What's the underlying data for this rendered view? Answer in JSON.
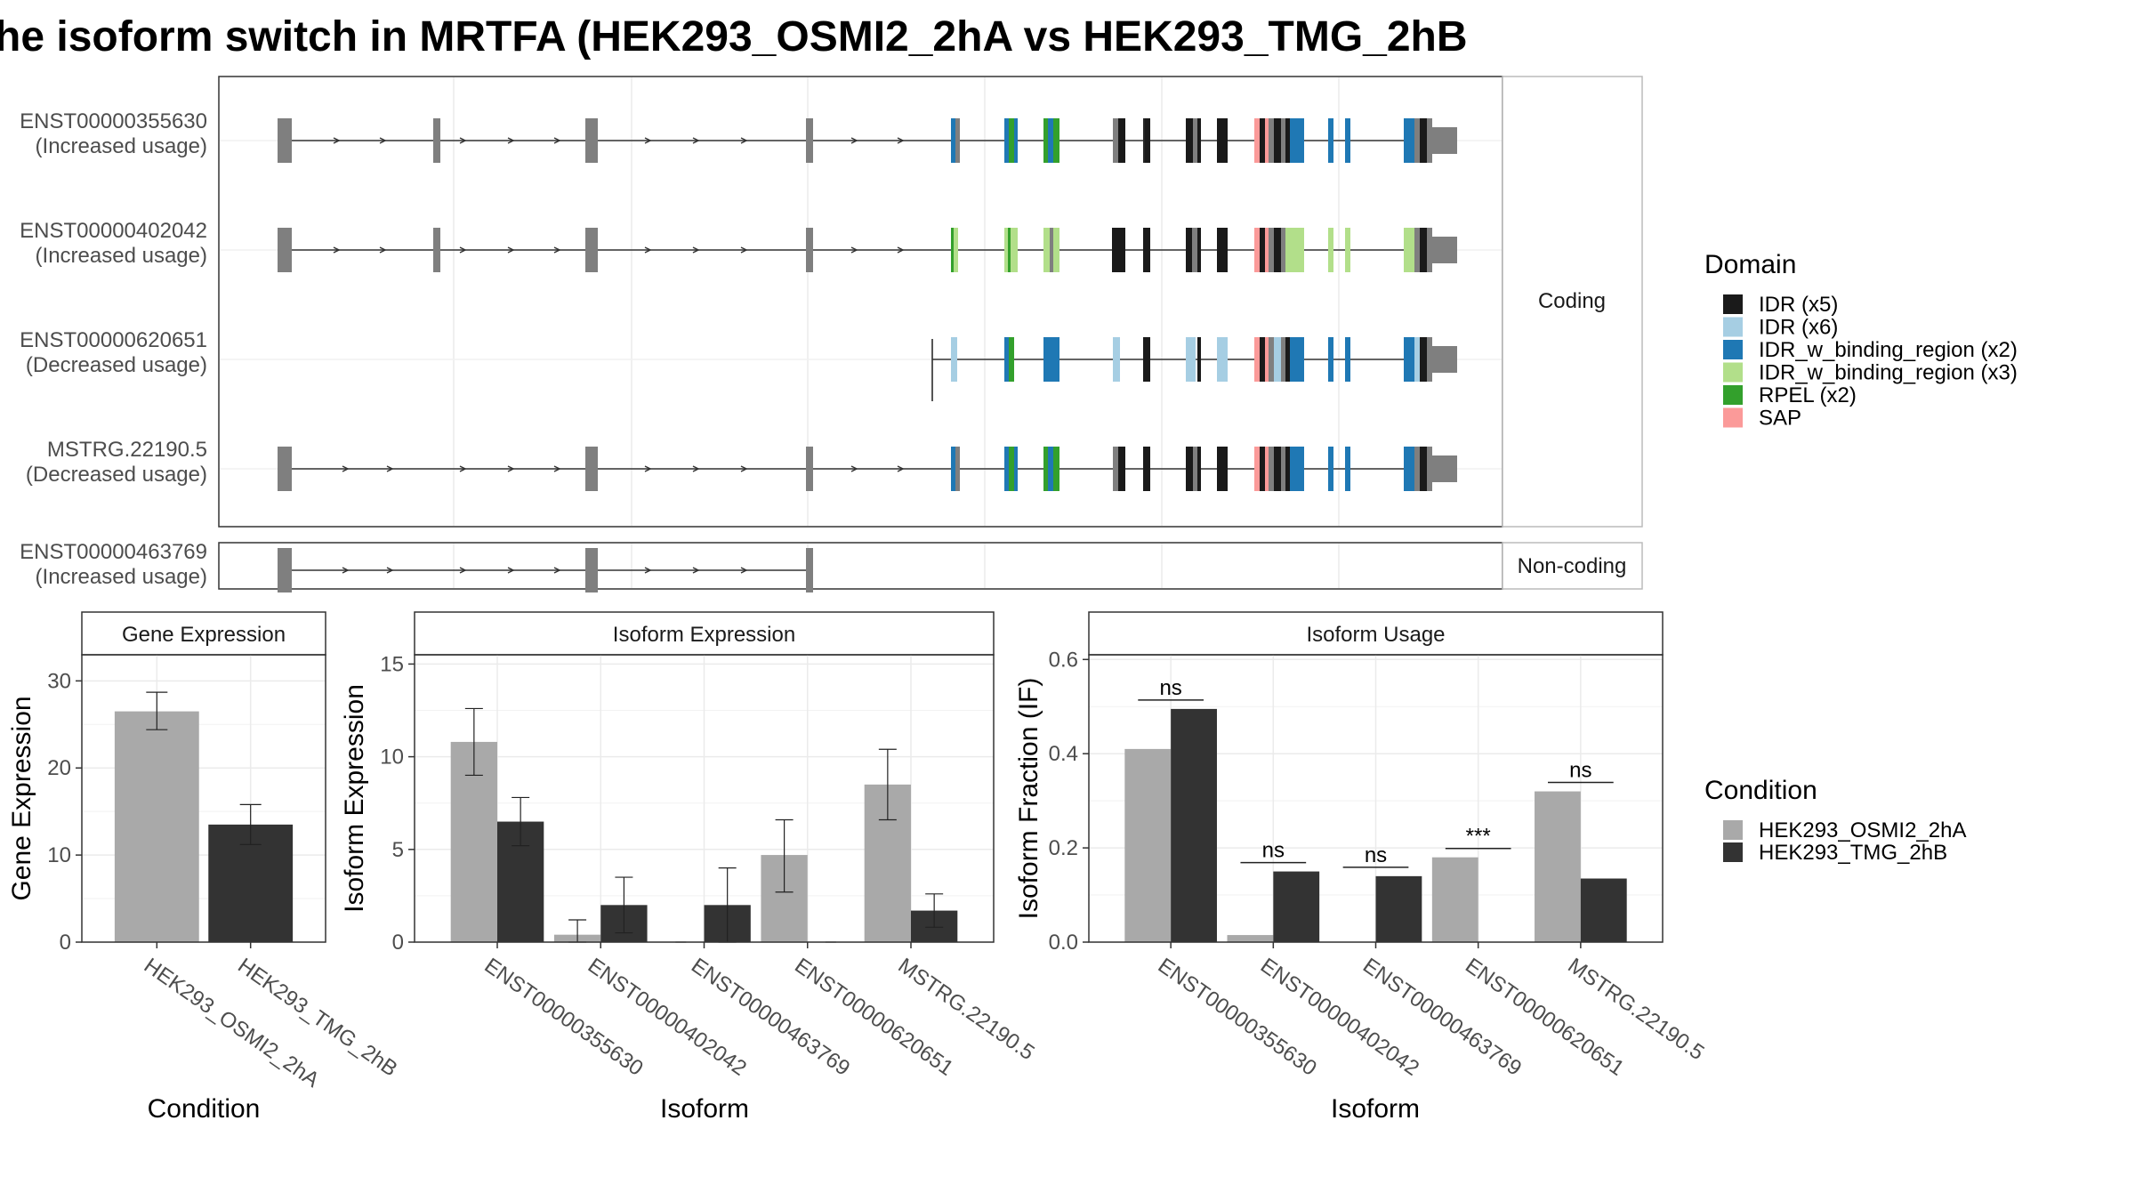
{
  "title": "he isoform switch in MRTFA (HEK293_OSMI2_2hA vs HEK293_TMG_2hB",
  "structure": {
    "coding_label": "Coding",
    "noncoding_label": "Non-coding",
    "transcripts": [
      {
        "id": "ENST00000355630",
        "usage": "(Increased usage)",
        "group": "coding"
      },
      {
        "id": "ENST00000402042",
        "usage": "(Increased usage)",
        "group": "coding"
      },
      {
        "id": "ENST00000620651",
        "usage": "(Decreased usage)",
        "group": "coding"
      },
      {
        "id": "MSTRG.22190.5",
        "usage": "(Decreased usage)",
        "group": "coding"
      },
      {
        "id": "ENST00000463769",
        "usage": "(Increased usage)",
        "group": "noncoding"
      }
    ]
  },
  "legend_domain": {
    "title": "Domain",
    "items": [
      {
        "label": "IDR (x5)",
        "color": "#1a1a1a"
      },
      {
        "label": "IDR (x6)",
        "color": "#a6cee3"
      },
      {
        "label": "IDR_w_binding_region (x2)",
        "color": "#1f78b4"
      },
      {
        "label": "IDR_w_binding_region (x3)",
        "color": "#b2df8a"
      },
      {
        "label": "RPEL (x2)",
        "color": "#33a02c"
      },
      {
        "label": "SAP",
        "color": "#fb9a99"
      }
    ]
  },
  "legend_condition": {
    "title": "Condition",
    "items": [
      {
        "label": "HEK293_OSMI2_2hA",
        "color": "#a9a9a9"
      },
      {
        "label": "HEK293_TMG_2hB",
        "color": "#333333"
      }
    ]
  },
  "chart_data": [
    {
      "type": "bar",
      "title": "Gene Expression",
      "xlabel": "Condition",
      "ylabel": "Gene Expression",
      "ylim": [
        0,
        33
      ],
      "yticks": [
        0,
        10,
        20,
        30
      ],
      "categories": [
        "HEK293_OSMI2_2hA",
        "HEK293_TMG_2hB"
      ],
      "values": [
        26.5,
        13.5
      ],
      "errors": [
        [
          24.4,
          28.7
        ],
        [
          11.2,
          15.8
        ]
      ]
    },
    {
      "type": "bar",
      "title": "Isoform Expression",
      "xlabel": "Isoform",
      "ylabel": "Isoform Expression",
      "ylim": [
        0,
        15.5
      ],
      "yticks": [
        0,
        5,
        10,
        15
      ],
      "categories": [
        "ENST00000355630",
        "ENST00000402042",
        "ENST00000463769",
        "ENST00000620651",
        "MSTRG.22190.5"
      ],
      "series": [
        {
          "name": "HEK293_OSMI2_2hA",
          "values": [
            10.8,
            0.4,
            0.0,
            4.7,
            8.5
          ],
          "errors": [
            [
              9.0,
              12.6
            ],
            [
              0.0,
              1.2
            ],
            [
              0.0,
              0.0
            ],
            [
              2.7,
              6.6
            ],
            [
              6.6,
              10.4
            ]
          ]
        },
        {
          "name": "HEK293_TMG_2hB",
          "values": [
            6.5,
            2.0,
            2.0,
            0.0,
            1.7
          ],
          "errors": [
            [
              5.2,
              7.8
            ],
            [
              0.5,
              3.5
            ],
            [
              0.0,
              4.0
            ],
            [
              0.0,
              0.0
            ],
            [
              0.8,
              2.6
            ]
          ]
        }
      ]
    },
    {
      "type": "bar",
      "title": "Isoform Usage",
      "xlabel": "Isoform",
      "ylabel": "Isoform Fraction (IF)",
      "ylim": [
        0,
        0.61
      ],
      "yticks": [
        0.0,
        0.2,
        0.4,
        0.6
      ],
      "ytick_labels": [
        "0.0",
        "0.2",
        "0.4",
        "0.6"
      ],
      "categories": [
        "ENST00000355630",
        "ENST00000402042",
        "ENST00000463769",
        "ENST00000620651",
        "MSTRG.22190.5"
      ],
      "series": [
        {
          "name": "HEK293_OSMI2_2hA",
          "values": [
            0.41,
            0.015,
            0.0,
            0.18,
            0.32
          ]
        },
        {
          "name": "HEK293_TMG_2hB",
          "values": [
            0.495,
            0.15,
            0.14,
            0.0,
            0.135
          ]
        }
      ],
      "significance": [
        "ns",
        "ns",
        "ns",
        "***",
        "ns"
      ]
    }
  ]
}
